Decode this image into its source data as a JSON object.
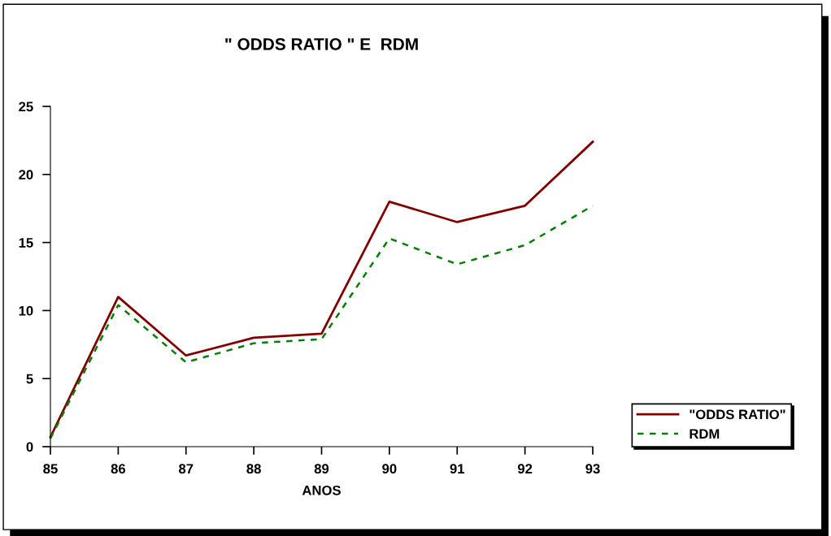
{
  "chart_data": {
    "type": "line",
    "title": "\" ODDS RATIO \" E  RDM",
    "xlabel": "ANOS",
    "x": [
      85,
      86,
      87,
      88,
      89,
      90,
      91,
      92,
      93
    ],
    "xlim": [
      85,
      93
    ],
    "xticks": [
      85,
      86,
      87,
      88,
      89,
      90,
      91,
      92,
      93
    ],
    "ylim": [
      0,
      25
    ],
    "yticks": [
      0,
      5,
      10,
      15,
      20,
      25
    ],
    "grid": false,
    "legend": "right",
    "marker": "none",
    "series": [
      {
        "name": "\"ODDS RATIO\"",
        "color": "#800000",
        "line_style": "solid",
        "values": [
          0.7,
          11.0,
          6.7,
          8.0,
          8.3,
          18.0,
          16.5,
          17.7,
          22.4
        ]
      },
      {
        "name": "RDM",
        "color": "#008000",
        "line_style": "dashed",
        "values": [
          0.6,
          10.4,
          6.2,
          7.6,
          7.9,
          15.3,
          13.4,
          14.8,
          17.7
        ]
      }
    ]
  }
}
